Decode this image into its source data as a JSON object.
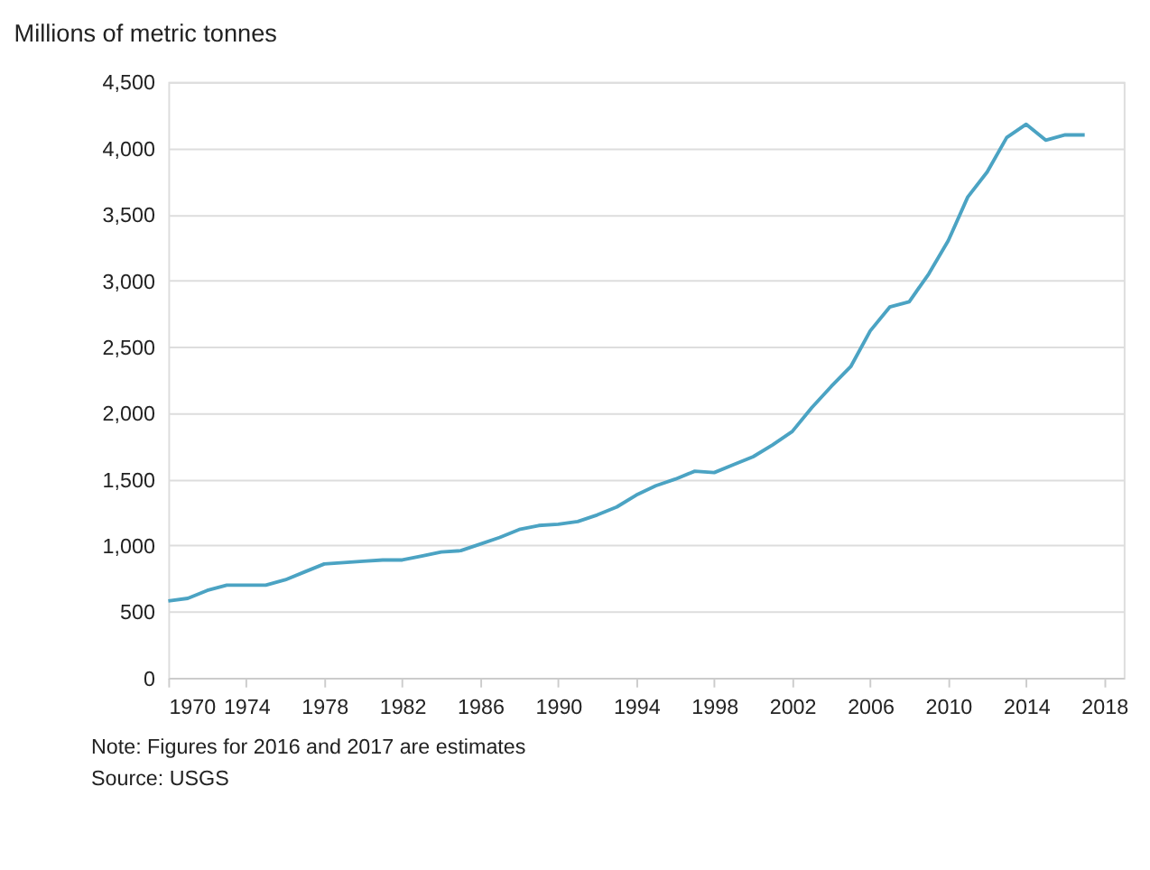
{
  "chart_data": {
    "type": "line",
    "ylabel": "Millions of metric tonnes",
    "x": [
      1970,
      1971,
      1972,
      1973,
      1974,
      1975,
      1976,
      1977,
      1978,
      1979,
      1980,
      1981,
      1982,
      1983,
      1984,
      1985,
      1986,
      1987,
      1988,
      1989,
      1990,
      1991,
      1992,
      1993,
      1994,
      1995,
      1996,
      1997,
      1998,
      1999,
      2000,
      2001,
      2002,
      2003,
      2004,
      2005,
      2006,
      2007,
      2008,
      2009,
      2010,
      2011,
      2012,
      2013,
      2014,
      2015,
      2016,
      2017
    ],
    "series": [
      {
        "color": "#4ba3c3",
        "values": [
          580,
          600,
          660,
          700,
          700,
          700,
          740,
          800,
          860,
          870,
          880,
          890,
          890,
          920,
          950,
          960,
          1010,
          1060,
          1120,
          1150,
          1160,
          1180,
          1230,
          1290,
          1380,
          1450,
          1500,
          1560,
          1550,
          1610,
          1670,
          1760,
          1860,
          2040,
          2200,
          2350,
          2620,
          2800,
          2840,
          3050,
          3300,
          3630,
          3820,
          4080,
          4180,
          4060,
          4100,
          4100
        ]
      }
    ],
    "xlim": [
      1970,
      2019
    ],
    "xticks": [
      1970,
      1974,
      1978,
      1982,
      1986,
      1990,
      1994,
      1998,
      2002,
      2006,
      2010,
      2014,
      2018
    ],
    "ylim": [
      0,
      4500
    ],
    "yticks": [
      0,
      500,
      {
        "value": 1000,
        "label": "1,000"
      },
      {
        "value": 1500,
        "label": "1,500"
      },
      {
        "value": 2000,
        "label": "2,000"
      },
      {
        "value": 2500,
        "label": "2,500"
      },
      {
        "value": 3000,
        "label": "3,000"
      },
      {
        "value": 3500,
        "label": "3,500"
      },
      {
        "value": 4000,
        "label": "4,000"
      },
      {
        "value": 4500,
        "label": "4,500"
      }
    ],
    "grid": "y",
    "line_style": "solid",
    "annotations": [
      "Note: Figures for 2016 and 2017 are estimates",
      "Source: USGS"
    ]
  }
}
